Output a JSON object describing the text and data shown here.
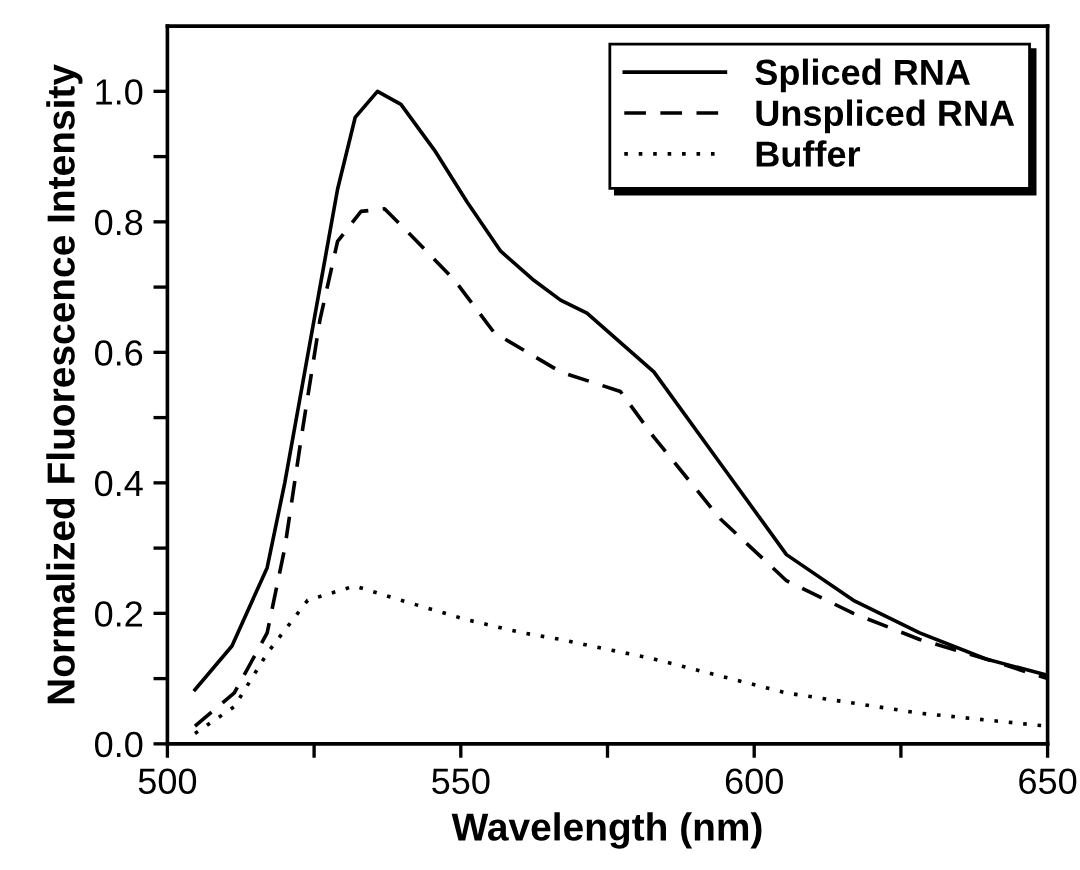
{
  "chart_data": {
    "type": "line",
    "xlabel": "Wavelength (nm)",
    "ylabel": "Normalized Fluorescence Intensity",
    "xlim": [
      500,
      650
    ],
    "ylim": [
      0,
      1.1
    ],
    "xticks": [
      500,
      {
        "value": 525,
        "label": null
      },
      550,
      {
        "value": 575,
        "label": null
      },
      600,
      {
        "value": 625,
        "label": null
      },
      650
    ],
    "yticks": [
      {
        "value": 0.0,
        "label": "0.0"
      },
      {
        "value": 0.1,
        "label": null
      },
      {
        "value": 0.2,
        "label": "0.2"
      },
      {
        "value": 0.3,
        "label": null
      },
      {
        "value": 0.4,
        "label": "0.4"
      },
      {
        "value": 0.5,
        "label": null
      },
      {
        "value": 0.6,
        "label": "0.6"
      },
      {
        "value": 0.7,
        "label": null
      },
      {
        "value": 0.8,
        "label": "0.8"
      },
      {
        "value": 0.9,
        "label": null
      },
      {
        "value": 1.0,
        "label": "1.0"
      }
    ],
    "legend": "top right",
    "grid": false,
    "series": [
      {
        "name": "Spliced RNA",
        "color": "#000000",
        "line_style": "solid",
        "x": [
          504.7,
          511,
          517,
          520,
          523,
          526,
          529,
          532,
          535.8,
          539.8,
          545.5,
          551.1,
          556.8,
          562.5,
          567,
          571.5,
          582.9,
          594.2,
          605.5,
          616.9,
          628.2,
          639.5,
          650
        ],
        "values": [
          0.083,
          0.15,
          0.27,
          0.4,
          0.55,
          0.7,
          0.85,
          0.96,
          1.0,
          0.98,
          0.91,
          0.83,
          0.755,
          0.71,
          0.68,
          0.66,
          0.57,
          0.43,
          0.29,
          0.22,
          0.17,
          0.13,
          0.105
        ]
      },
      {
        "name": "Unspliced RNA",
        "color": "#000000",
        "line_style": "dashed",
        "x": [
          504.7,
          511.4,
          517,
          520,
          523,
          526,
          529,
          533,
          537,
          542,
          549,
          555.7,
          567,
          577.2,
          582.9,
          594.2,
          605.5,
          616.9,
          628.2,
          639.5,
          650
        ],
        "values": [
          0.027,
          0.078,
          0.17,
          0.3,
          0.48,
          0.65,
          0.77,
          0.816,
          0.82,
          0.775,
          0.71,
          0.63,
          0.57,
          0.54,
          0.47,
          0.345,
          0.25,
          0.2,
          0.16,
          0.13,
          0.1
        ]
      },
      {
        "name": "Buffer",
        "color": "#000000",
        "line_style": "dotted",
        "x": [
          504.7,
          511.4,
          517.1,
          523.9,
          531.9,
          539.8,
          551.1,
          560.6,
          567,
          582.9,
          605.5,
          628.2,
          650
        ],
        "values": [
          0.016,
          0.057,
          0.14,
          0.22,
          0.242,
          0.22,
          0.19,
          0.17,
          0.16,
          0.13,
          0.078,
          0.047,
          0.027
        ]
      }
    ]
  }
}
